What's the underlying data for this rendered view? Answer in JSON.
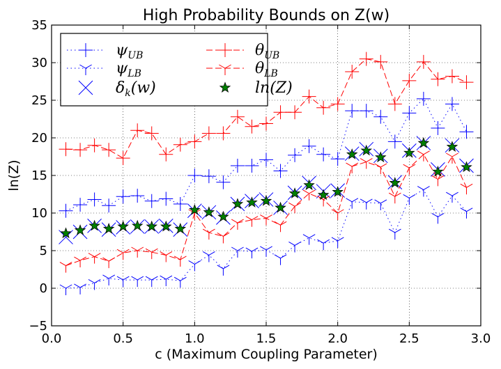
{
  "chart_data": {
    "type": "line",
    "title": "High Probability Bounds on Z(w)",
    "xlabel": "c (Maximum Coupling Parameter)",
    "ylabel": "ln(Z)",
    "xlim": [
      0.0,
      3.0
    ],
    "ylim": [
      -5,
      35
    ],
    "xticks": [
      "0.0",
      "0.5",
      "1.0",
      "1.5",
      "2.0",
      "2.5",
      "3.0"
    ],
    "yticks": [
      "−5",
      "0",
      "5",
      "10",
      "15",
      "20",
      "25",
      "30",
      "35"
    ],
    "grid": true,
    "legend_position": "top-left",
    "x": [
      0.1,
      0.2,
      0.3,
      0.4,
      0.5,
      0.6,
      0.7,
      0.8,
      0.9,
      1.0,
      1.1,
      1.2,
      1.3,
      1.4,
      1.5,
      1.6,
      1.7,
      1.8,
      1.9,
      2.0,
      2.1,
      2.2,
      2.3,
      2.4,
      2.5,
      2.6,
      2.7,
      2.8,
      2.9
    ],
    "series": [
      {
        "key": "psi_ub",
        "name": "ψ",
        "sub": "UB",
        "color": "#0000ff",
        "dash": "1.5,4",
        "marker": "plus",
        "values": [
          10.3,
          11.1,
          11.8,
          11.0,
          12.2,
          12.3,
          11.6,
          11.9,
          11.2,
          15.0,
          14.9,
          14.1,
          16.3,
          16.3,
          17.1,
          15.6,
          17.7,
          18.9,
          17.8,
          17.2,
          23.6,
          23.6,
          22.8,
          19.5,
          23.3,
          25.2,
          21.3,
          24.5,
          20.8
        ]
      },
      {
        "key": "psi_lb",
        "name": "ψ",
        "sub": "LB",
        "color": "#0000ff",
        "dash": "1.5,4",
        "marker": "tri_down",
        "values": [
          0.0,
          0.1,
          0.7,
          1.3,
          1.1,
          1.1,
          1.1,
          1.2,
          1.0,
          3.2,
          4.4,
          2.6,
          5.0,
          4.9,
          5.1,
          4.0,
          5.7,
          6.7,
          6.0,
          6.3,
          11.5,
          11.4,
          11.3,
          7.4,
          12.0,
          13.1,
          9.5,
          12.3,
          10.2
        ]
      },
      {
        "key": "delta_k",
        "name": "δ",
        "sub": "k",
        "suffix": "(w)",
        "color": "#0000ff",
        "dash": "none",
        "marker": "x",
        "values": [
          6.8,
          7.5,
          8.3,
          7.8,
          8.1,
          8.2,
          8.2,
          8.3,
          7.8,
          10.3,
          10.1,
          9.4,
          11.2,
          11.6,
          11.8,
          10.7,
          12.7,
          14.0,
          12.9,
          13.0,
          17.9,
          18.5,
          17.6,
          14.1,
          18.3,
          19.3,
          15.8,
          19.0,
          16.3
        ]
      },
      {
        "key": "theta_ub",
        "name": "θ",
        "sub": "UB",
        "color": "#ff0000",
        "dash": "9,4",
        "marker": "plus",
        "values": [
          18.5,
          18.4,
          19.0,
          18.4,
          17.3,
          21.0,
          20.6,
          17.8,
          19.1,
          19.5,
          20.6,
          20.6,
          22.8,
          21.5,
          21.9,
          23.4,
          23.4,
          25.5,
          24.0,
          24.5,
          28.8,
          30.5,
          30.1,
          24.5,
          27.6,
          30.1,
          27.8,
          28.2,
          27.4
        ]
      },
      {
        "key": "theta_lb",
        "name": "θ",
        "sub": "LB",
        "color": "#ff0000",
        "dash": "9,4",
        "marker": "tri_down",
        "values": [
          3.0,
          3.7,
          4.2,
          3.6,
          4.7,
          5.0,
          4.8,
          4.4,
          3.8,
          10.0,
          7.4,
          6.9,
          8.7,
          9.1,
          9.3,
          8.4,
          10.9,
          12.6,
          11.8,
          10.0,
          16.2,
          16.8,
          16.1,
          12.2,
          16.0,
          17.8,
          14.5,
          17.5,
          13.4
        ]
      },
      {
        "key": "lnz",
        "name": "ln(Z)",
        "color": "#008000",
        "dash": "none",
        "marker": "star",
        "values": [
          7.3,
          7.7,
          8.3,
          7.9,
          8.2,
          8.3,
          8.2,
          8.2,
          7.9,
          10.4,
          10.1,
          9.5,
          11.2,
          11.4,
          11.6,
          10.7,
          12.6,
          13.7,
          12.4,
          12.8,
          17.8,
          18.3,
          17.4,
          14.0,
          18.0,
          19.3,
          15.5,
          18.8,
          16.1
        ]
      }
    ]
  }
}
